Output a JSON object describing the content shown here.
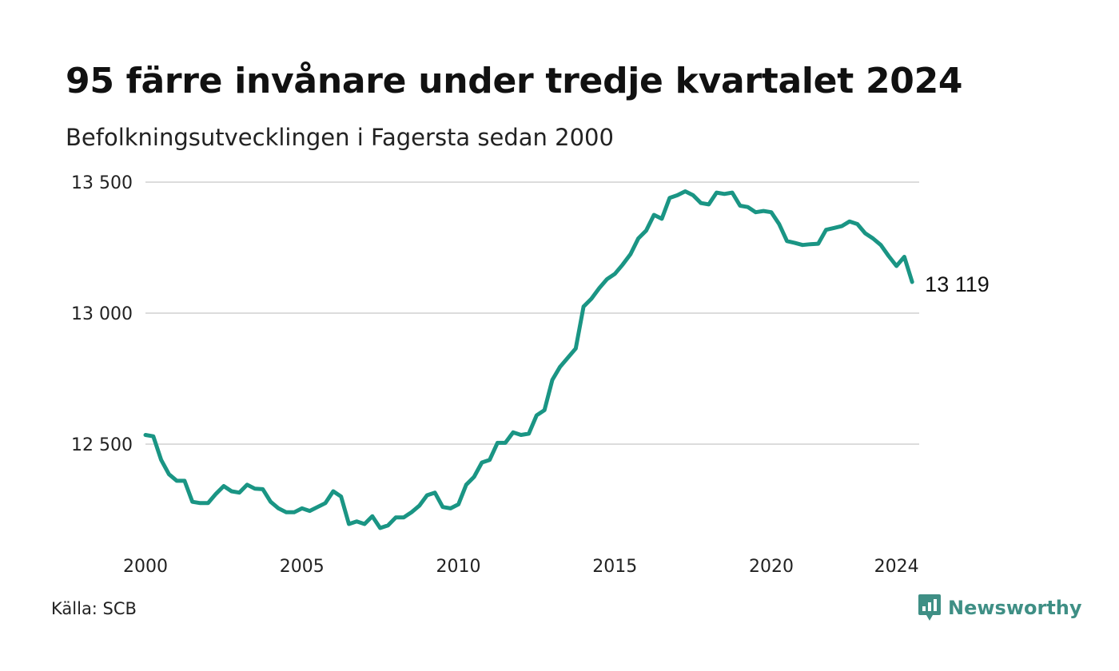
{
  "title": "95 färre invånare under tredje kvartalet 2024",
  "subtitle": "Befolkningsutvecklingen i Fagersta sedan 2000",
  "source": "Källa: SCB",
  "brand": {
    "name": "Newsworthy",
    "icon": "newsworthy-logo-icon",
    "color": "#3f8f85"
  },
  "chart_data": {
    "type": "line",
    "title": "95 färre invånare under tredje kvartalet 2024",
    "subtitle": "Befolkningsutvecklingen i Fagersta sedan 2000",
    "xlabel": "",
    "ylabel": "",
    "xlim": [
      2000,
      2025
    ],
    "ylim": [
      12200,
      13500
    ],
    "x_ticks": [
      2000,
      2005,
      2010,
      2015,
      2020,
      2024
    ],
    "y_ticks": [
      12500,
      13000,
      13500
    ],
    "y_tick_labels": [
      "12 500",
      "13 000",
      "13 500"
    ],
    "grid": "horizontal",
    "line_color": "#1a9584",
    "end_label": "13 119",
    "series": [
      {
        "x": [
          2000.0,
          2000.25,
          2000.5,
          2000.75,
          2001.0,
          2001.25,
          2001.5,
          2001.75,
          2002.0,
          2002.25,
          2002.5,
          2002.75,
          2003.0,
          2003.25,
          2003.5,
          2003.75,
          2004.0,
          2004.25,
          2004.5,
          2004.75,
          2005.0,
          2005.25,
          2005.5,
          2005.75,
          2006.0,
          2006.25,
          2006.5,
          2006.75,
          2007.0,
          2007.25,
          2007.5,
          2007.75,
          2008.0,
          2008.25,
          2008.5,
          2008.75,
          2009.0,
          2009.25,
          2009.5,
          2009.75,
          2010.0,
          2010.25,
          2010.5,
          2010.75,
          2011.0,
          2011.25,
          2011.5,
          2011.75,
          2012.0,
          2012.25,
          2012.5,
          2012.75,
          2013.0,
          2013.25,
          2013.5,
          2013.75,
          2014.0,
          2014.25,
          2014.5,
          2014.75,
          2015.0,
          2015.25,
          2015.5,
          2015.75,
          2016.0,
          2016.25,
          2016.5,
          2016.75,
          2017.0,
          2017.25,
          2017.5,
          2017.75,
          2018.0,
          2018.25,
          2018.5,
          2018.75,
          2019.0,
          2019.25,
          2019.5,
          2019.75,
          2020.0,
          2020.25,
          2020.5,
          2020.75,
          2021.0,
          2021.25,
          2021.5,
          2021.75,
          2022.0,
          2022.25,
          2022.5,
          2022.75,
          2023.0,
          2023.25,
          2023.5,
          2023.75,
          2024.0,
          2024.25,
          2024.5
        ],
        "values": [
          12535,
          12530,
          12440,
          12385,
          12360,
          12360,
          12280,
          12275,
          12275,
          12310,
          12340,
          12320,
          12315,
          12345,
          12330,
          12328,
          12280,
          12255,
          12240,
          12240,
          12255,
          12245,
          12260,
          12275,
          12320,
          12300,
          12195,
          12205,
          12195,
          12225,
          12180,
          12190,
          12220,
          12220,
          12240,
          12265,
          12305,
          12315,
          12260,
          12255,
          12270,
          12345,
          12375,
          12430,
          12440,
          12505,
          12505,
          12545,
          12535,
          12540,
          12610,
          12630,
          12745,
          12795,
          12830,
          12865,
          13025,
          13055,
          13095,
          13130,
          13150,
          13185,
          13225,
          13285,
          13315,
          13375,
          13360,
          13440,
          13450,
          13465,
          13450,
          13420,
          13415,
          13460,
          13455,
          13460,
          13410,
          13405,
          13385,
          13390,
          13385,
          13340,
          13275,
          13268,
          13260,
          13263,
          13265,
          13318,
          13325,
          13332,
          13350,
          13340,
          13305,
          13285,
          13260,
          13218,
          13180,
          13215,
          13119
        ]
      }
    ]
  }
}
